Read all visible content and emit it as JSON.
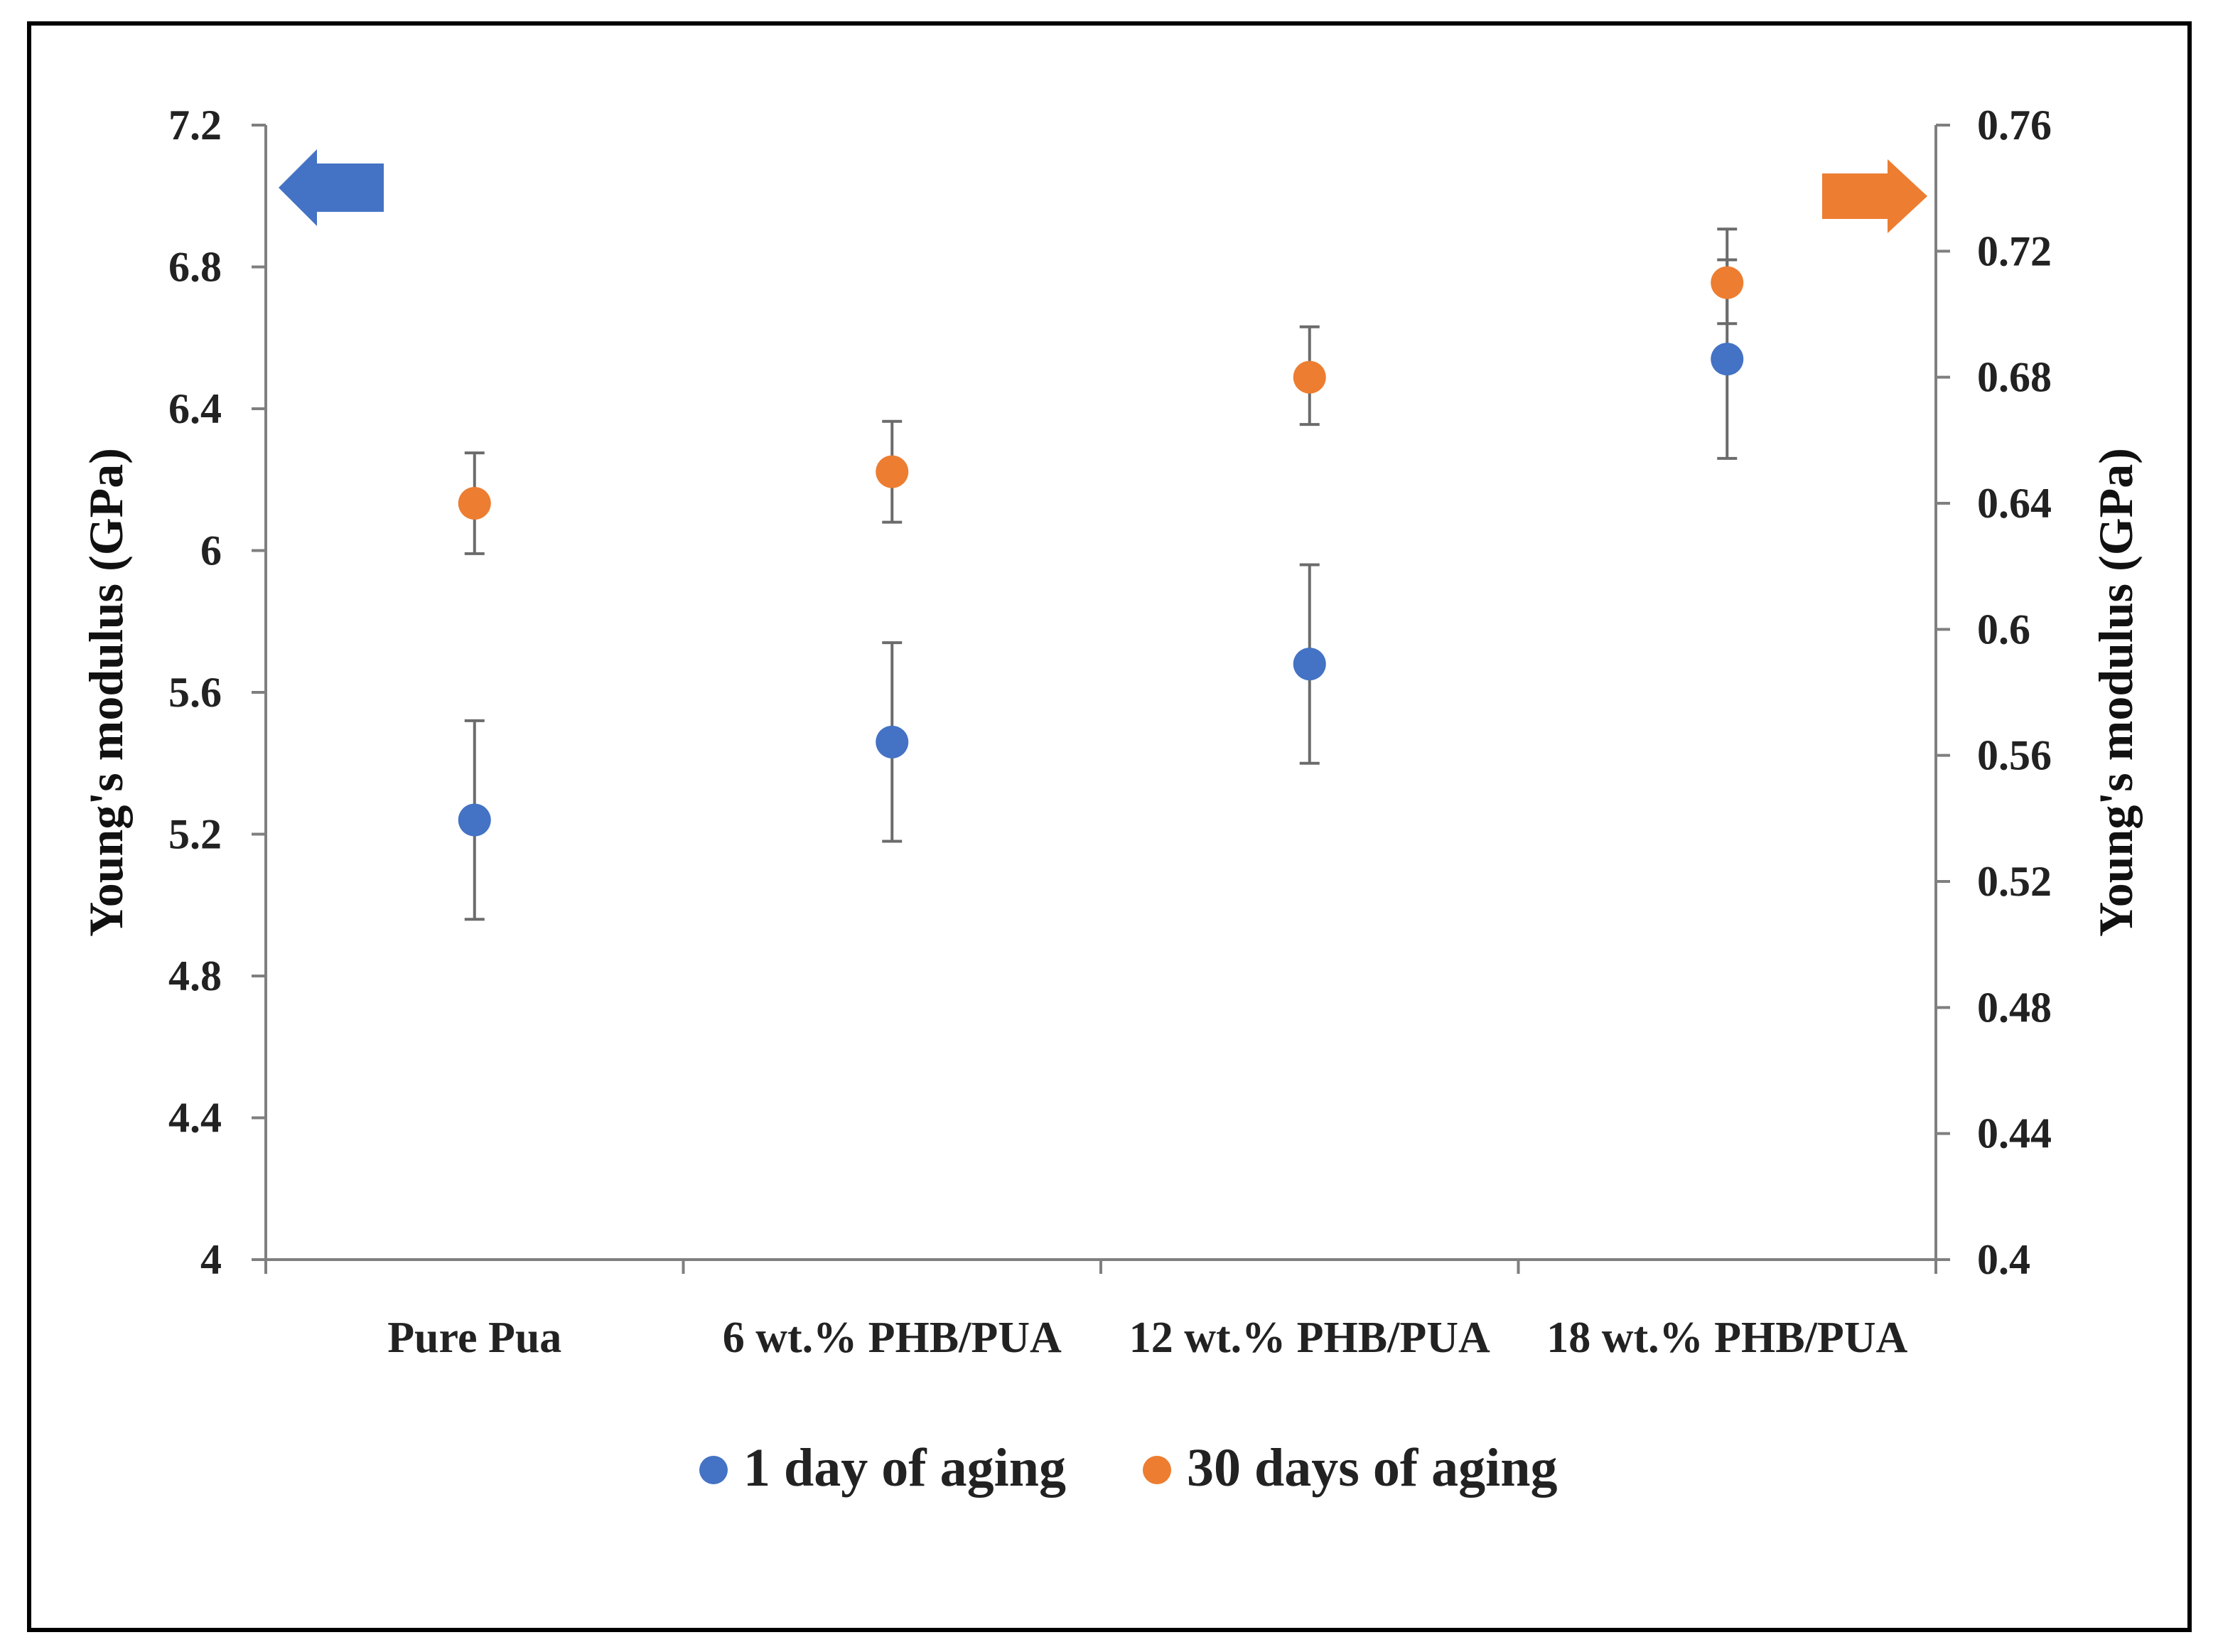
{
  "chart_data": {
    "type": "scatter",
    "categories": [
      "Pure Pua",
      "6 wt.% PHB/PUA",
      "12 wt.% PHB/PUA",
      "18 wt.% PHB/PUA"
    ],
    "series": [
      {
        "name": "1 day of aging",
        "axis": "left",
        "color": "#4472C4",
        "values": [
          5.24,
          5.46,
          5.68,
          6.54
        ],
        "error_low": [
          4.96,
          5.18,
          5.4,
          6.26
        ],
        "error_high": [
          5.52,
          5.74,
          5.96,
          6.82
        ]
      },
      {
        "name": "30 days of aging",
        "axis": "right",
        "color": "#ED7D31",
        "values": [
          0.64,
          0.65,
          0.68,
          0.71
        ],
        "error_low": [
          0.624,
          0.634,
          0.665,
          0.697
        ],
        "error_high": [
          0.656,
          0.666,
          0.696,
          0.727
        ]
      }
    ],
    "y_left": {
      "label": "Young's modulus (GPa)",
      "lim": [
        4,
        7.2
      ],
      "ticks": [
        "4",
        "4.4",
        "4.8",
        "5.2",
        "5.6",
        "6",
        "6.4",
        "6.8",
        "7.2"
      ]
    },
    "y_right": {
      "label": "Young's modulus (GPa)",
      "lim": [
        0.4,
        0.76
      ],
      "ticks": [
        "0.4",
        "0.44",
        "0.48",
        "0.52",
        "0.56",
        "0.6",
        "0.64",
        "0.68",
        "0.72",
        "0.76"
      ]
    },
    "legend_position": "bottom",
    "grid": false,
    "annotations": [
      {
        "type": "arrow",
        "direction": "left",
        "color": "#4472C4",
        "meaning": "left axis"
      },
      {
        "type": "arrow",
        "direction": "right",
        "color": "#ED7D31",
        "meaning": "right axis"
      }
    ]
  }
}
